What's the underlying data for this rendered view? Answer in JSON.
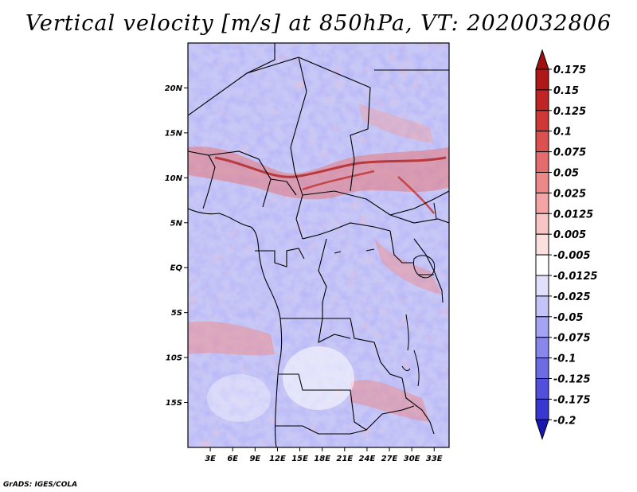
{
  "title": "Vertical velocity [m/s] at 850hPa, VT: 2020032806",
  "credit": "GrADS: IGES/COLA",
  "map": {
    "projection": "lat-lon",
    "lon_range": [
      0,
      35
    ],
    "lat_range": [
      -20,
      25
    ],
    "lat_ticks": [
      {
        "value": 20,
        "label": "20N"
      },
      {
        "value": 15,
        "label": "15N"
      },
      {
        "value": 10,
        "label": "10N"
      },
      {
        "value": 5,
        "label": "5N"
      },
      {
        "value": 0,
        "label": "EQ"
      },
      {
        "value": -5,
        "label": "5S"
      },
      {
        "value": -10,
        "label": "10S"
      },
      {
        "value": -15,
        "label": "15S"
      }
    ],
    "lon_ticks": [
      {
        "value": 3,
        "label": "3E"
      },
      {
        "value": 6,
        "label": "6E"
      },
      {
        "value": 9,
        "label": "9E"
      },
      {
        "value": 12,
        "label": "12E"
      },
      {
        "value": 15,
        "label": "15E"
      },
      {
        "value": 18,
        "label": "18E"
      },
      {
        "value": 21,
        "label": "21E"
      },
      {
        "value": 24,
        "label": "24E"
      },
      {
        "value": 27,
        "label": "27E"
      },
      {
        "value": 30,
        "label": "30E"
      },
      {
        "value": 33,
        "label": "33E"
      }
    ]
  },
  "colorbar": {
    "levels": [
      {
        "label": "0.175",
        "color": "#b01818"
      },
      {
        "label": "0.15",
        "color": "#c02424"
      },
      {
        "label": "0.125",
        "color": "#d03838"
      },
      {
        "label": "0.1",
        "color": "#dc5050"
      },
      {
        "label": "0.075",
        "color": "#e46c6c"
      },
      {
        "label": "0.05",
        "color": "#ec8888"
      },
      {
        "label": "0.025",
        "color": "#f4a4a4"
      },
      {
        "label": "0.0125",
        "color": "#f8c4c4"
      },
      {
        "label": "0.005",
        "color": "#fce0e0"
      },
      {
        "label": "-0.005",
        "color": "#ffffff"
      },
      {
        "label": "-0.0125",
        "color": "#e0e0fc"
      },
      {
        "label": "-0.025",
        "color": "#c4c4f8"
      },
      {
        "label": "-0.05",
        "color": "#a4a4f4"
      },
      {
        "label": "-0.075",
        "color": "#8888ec"
      },
      {
        "label": "-0.1",
        "color": "#6c6ce4"
      },
      {
        "label": "-0.125",
        "color": "#5050dc"
      },
      {
        "label": "-0.175",
        "color": "#3838d0"
      },
      {
        "label": "-0.2",
        "color": "#2424c0"
      }
    ],
    "top_tip_color": "#a01010",
    "bottom_tip_color": "#1818b0"
  }
}
